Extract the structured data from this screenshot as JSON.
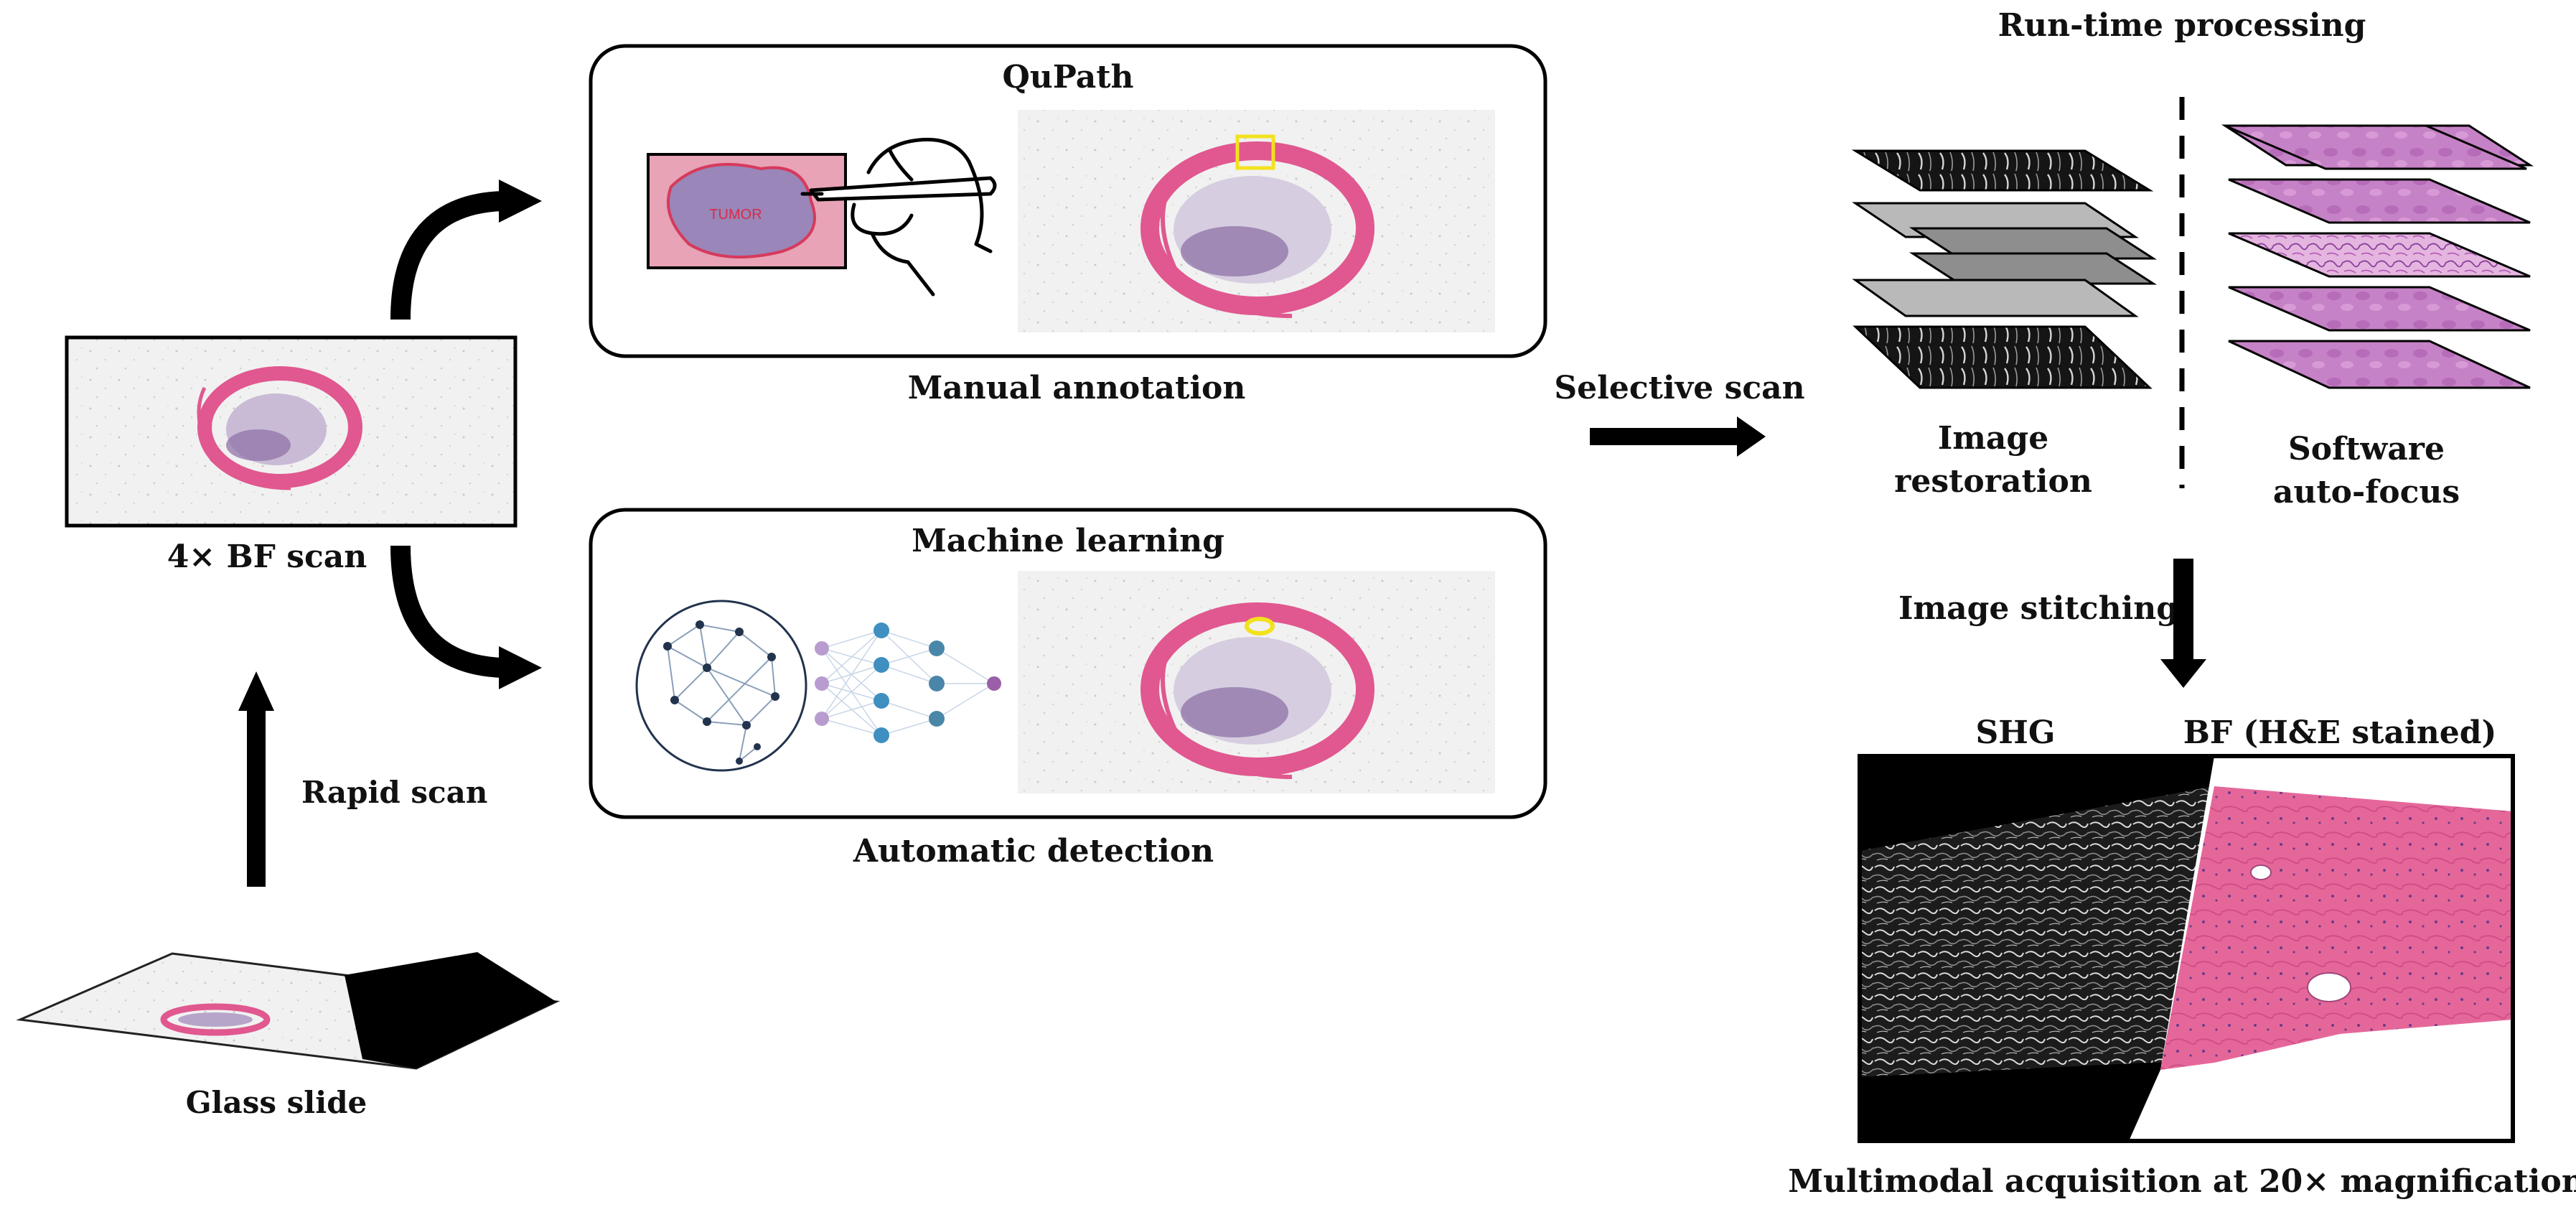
{
  "labels": {
    "glass_slide": "Glass slide",
    "rapid_scan": "Rapid scan",
    "bf_scan": "4× BF scan",
    "qupath": "QuPath",
    "manual_annotation": "Manual annotation",
    "machine_learning": "Machine learning",
    "automatic_detection": "Automatic detection",
    "tumor": "TUMOR",
    "selective_scan": "Selective scan",
    "run_time_processing": "Run-time processing",
    "image_restoration_line1": "Image",
    "image_restoration_line2": "restoration",
    "software_autofocus_line1": "Software",
    "software_autofocus_line2": "auto-focus",
    "image_stitching": "Image stitching",
    "shg": "SHG",
    "bf_he": "BF (H&E stained)",
    "multimodal": "Multimodal acquisition at 20× magnification"
  },
  "colors": {
    "tissue_pink": "#e0588f",
    "tissue_purple": "#9a7ab8",
    "highlight_yellow": "#f2e21e",
    "he_pink": "#e86a9c",
    "nn_purple": "#b99ccf",
    "nn_blue": "#3f8fc0"
  }
}
